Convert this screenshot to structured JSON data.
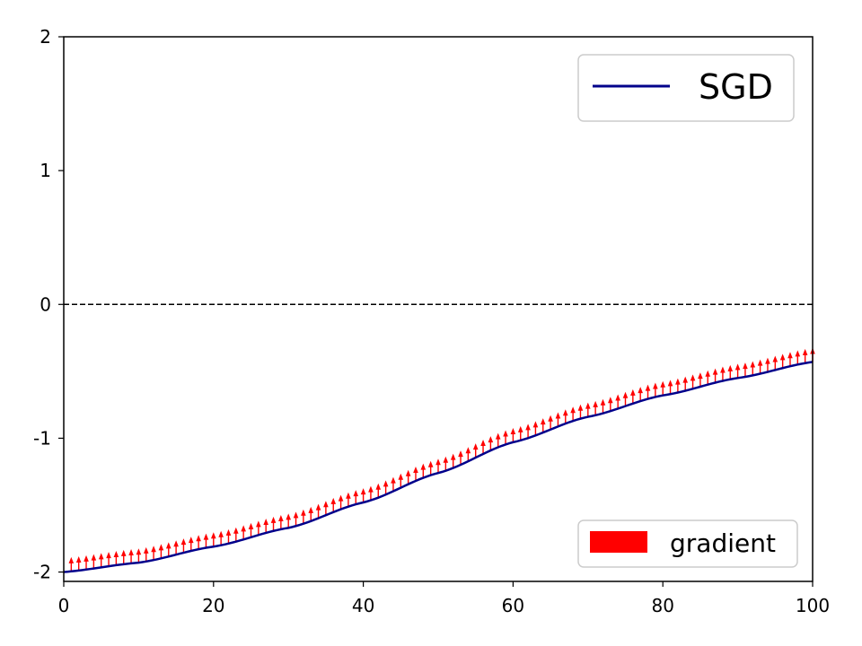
{
  "chart_data": {
    "type": "line",
    "title": "",
    "xlabel": "",
    "ylabel": "",
    "xlim": [
      0,
      100
    ],
    "ylim": [
      -2.07,
      2
    ],
    "x_ticks": [
      {
        "value": 0,
        "label": "0"
      },
      {
        "value": 20,
        "label": "20"
      },
      {
        "value": 40,
        "label": "40"
      },
      {
        "value": 60,
        "label": "60"
      },
      {
        "value": 80,
        "label": "80"
      },
      {
        "value": 100,
        "label": "100"
      }
    ],
    "y_ticks": [
      {
        "value": 2,
        "label": "2"
      },
      {
        "value": 1,
        "label": "1"
      },
      {
        "value": 0,
        "label": "0"
      },
      {
        "value": -1,
        "label": "-1"
      },
      {
        "value": -2,
        "label": "-2"
      }
    ],
    "reference_line": {
      "y": 0,
      "style": "dashed",
      "color": "#000000"
    },
    "grid": false,
    "series": [
      {
        "name": "SGD",
        "color": "#00008b",
        "x": [
          0,
          10,
          20,
          30,
          40,
          50,
          60,
          70,
          80,
          90,
          100
        ],
        "values": [
          -2.0,
          -1.93,
          -1.81,
          -1.67,
          -1.48,
          -1.26,
          -1.03,
          -0.84,
          -0.68,
          -0.55,
          -0.43
        ]
      }
    ],
    "arrows": {
      "name": "gradient",
      "color": "#ff0000",
      "x_start": 1,
      "x_end": 100,
      "x_step": 1,
      "length": 0.1,
      "direction": "up"
    },
    "legends": [
      {
        "placement": "top-right",
        "entries": [
          {
            "label": "SGD",
            "kind": "line",
            "color": "#00008b"
          }
        ]
      },
      {
        "placement": "bottom-right",
        "entries": [
          {
            "label": "gradient",
            "kind": "patch",
            "color": "#ff0000"
          }
        ]
      }
    ]
  }
}
